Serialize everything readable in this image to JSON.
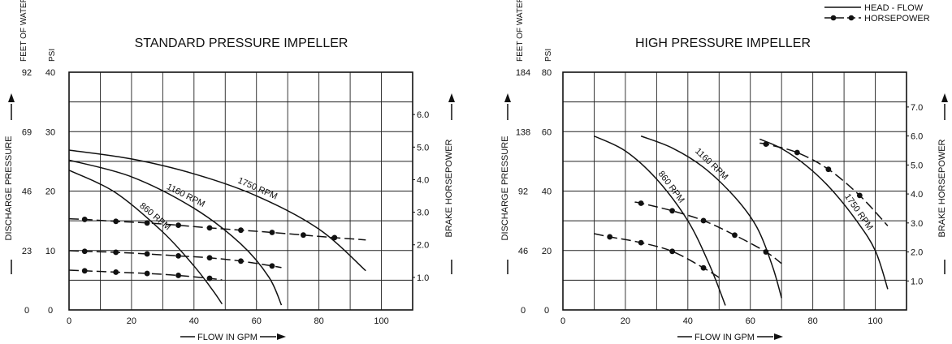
{
  "legend": {
    "head_flow": "HEAD - FLOW",
    "horsepower": "HORSEPOWER"
  },
  "chart_data": [
    {
      "type": "line",
      "title": "STANDARD PRESSURE IMPELLER",
      "xlabel": "FLOW IN GPM",
      "ylabel_left": "DISCHARGE PRESSURE",
      "ylabel_right": "BRAKE HORSEPOWER",
      "left_axis_titles": [
        "FEET OF WATER",
        "PSI"
      ],
      "xlim": [
        0,
        110
      ],
      "ylim": [
        0,
        40
      ],
      "x_ticks": [
        "0",
        "20",
        "40",
        "60",
        "80",
        "100"
      ],
      "psi_ticks": [
        "0",
        "10",
        "20",
        "30",
        "40"
      ],
      "feet_ticks": [
        "0",
        "23",
        "46",
        "69",
        "92"
      ],
      "hp_ticks": [
        "1.0",
        "2.0",
        "3.0",
        "4.0",
        "5.0",
        "6.0"
      ],
      "hp_range": [
        0,
        7.3
      ],
      "grid": true,
      "series": [
        {
          "name": "1750 RPM",
          "kind": "head",
          "x": [
            0,
            20,
            40,
            60,
            80,
            95
          ],
          "y": [
            26.9,
            25.4,
            22.9,
            19.2,
            13.6,
            6.6
          ]
        },
        {
          "name": "1160 RPM",
          "kind": "head",
          "x": [
            0,
            20,
            40,
            55,
            64,
            68
          ],
          "y": [
            25.2,
            22.4,
            17.1,
            11.1,
            5.5,
            0.8
          ]
        },
        {
          "name": "860 RPM",
          "kind": "head",
          "x": [
            0,
            15,
            30,
            40,
            46,
            49
          ],
          "y": [
            23.5,
            19.7,
            13.1,
            7.4,
            3.3,
            1.0
          ]
        },
        {
          "kind": "hp",
          "x": [
            0,
            5,
            15,
            25,
            35,
            45,
            55,
            65,
            75,
            85,
            95
          ],
          "y": [
            2.8,
            2.78,
            2.72,
            2.67,
            2.6,
            2.52,
            2.45,
            2.38,
            2.3,
            2.22,
            2.15
          ],
          "markers": [
            5,
            15,
            25,
            35,
            45,
            55,
            65,
            75,
            85
          ]
        },
        {
          "kind": "hp",
          "x": [
            0,
            5,
            15,
            25,
            35,
            45,
            55,
            65,
            68
          ],
          "y": [
            1.82,
            1.8,
            1.77,
            1.72,
            1.66,
            1.6,
            1.5,
            1.35,
            1.3
          ],
          "markers": [
            5,
            15,
            25,
            35,
            45,
            55,
            65
          ]
        },
        {
          "kind": "hp",
          "x": [
            0,
            5,
            15,
            25,
            35,
            45,
            49
          ],
          "y": [
            1.22,
            1.2,
            1.16,
            1.12,
            1.06,
            0.97,
            0.92
          ],
          "markers": [
            5,
            15,
            25,
            35,
            45
          ]
        }
      ]
    },
    {
      "type": "line",
      "title": "HIGH PRESSURE IMPELLER",
      "xlabel": "FLOW IN GPM",
      "ylabel_left": "DISCHARGE PRESSURE",
      "ylabel_right": "BRAKE HORSEPOWER",
      "left_axis_titles": [
        "FEET OF WATER",
        "PSI"
      ],
      "xlim": [
        0,
        110
      ],
      "ylim": [
        0,
        80
      ],
      "x_ticks": [
        "0",
        "20",
        "40",
        "60",
        "80",
        "100"
      ],
      "psi_ticks": [
        "0",
        "20",
        "40",
        "60",
        "80"
      ],
      "feet_ticks": [
        "0",
        "46",
        "92",
        "138",
        "184"
      ],
      "hp_ticks": [
        "1.0",
        "2.0",
        "3.0",
        "4.0",
        "5.0",
        "6.0",
        "7.0"
      ],
      "hp_range": [
        0,
        8.2
      ],
      "grid": true,
      "series": [
        {
          "name": "860 RPM",
          "kind": "head",
          "x": [
            10,
            20,
            30,
            40,
            47,
            52
          ],
          "y": [
            58.5,
            53.5,
            44.0,
            30.0,
            15.0,
            1.5
          ]
        },
        {
          "name": "1160 RPM",
          "kind": "head",
          "x": [
            25,
            35,
            45,
            55,
            62,
            67,
            70
          ],
          "y": [
            58.5,
            54.5,
            48.0,
            38.0,
            28.0,
            15.0,
            4.0
          ]
        },
        {
          "name": "1750 RPM",
          "kind": "head",
          "x": [
            63,
            70,
            78,
            86,
            94,
            100,
            104
          ],
          "y": [
            57.5,
            54.3,
            48.5,
            40.5,
            30.0,
            20.0,
            7.0
          ]
        },
        {
          "kind": "hp",
          "x": [
            10,
            15,
            25,
            35,
            45,
            51
          ],
          "y": [
            2.63,
            2.52,
            2.32,
            2.02,
            1.45,
            1.05
          ],
          "markers": [
            15,
            25,
            35,
            45
          ]
        },
        {
          "kind": "hp",
          "x": [
            23,
            25,
            35,
            45,
            55,
            65,
            70
          ],
          "y": [
            3.72,
            3.68,
            3.42,
            3.08,
            2.58,
            2.0,
            1.6
          ],
          "markers": [
            25,
            35,
            45,
            55,
            65
          ]
        },
        {
          "kind": "hp",
          "x": [
            63,
            65,
            75,
            85,
            95,
            104
          ],
          "y": [
            5.75,
            5.72,
            5.43,
            4.85,
            3.95,
            2.9
          ],
          "markers": [
            65,
            75,
            85,
            95
          ]
        }
      ]
    }
  ]
}
